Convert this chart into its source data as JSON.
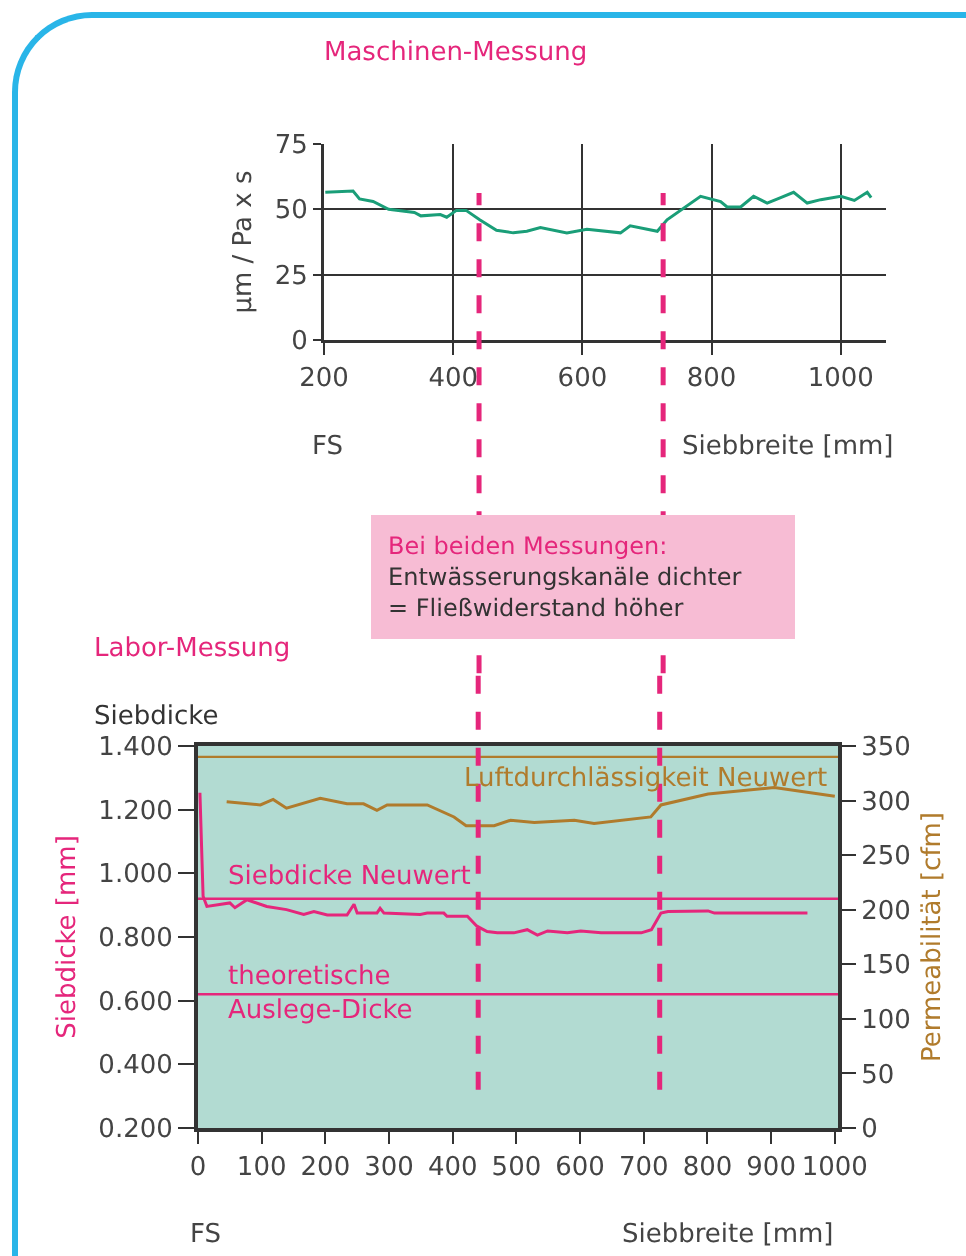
{
  "chart_data": [
    {
      "type": "line",
      "title": "Maschinen-Messung",
      "xlabel": "Siebbreite [mm]",
      "ylabel": "µm / Pa x s",
      "x": [
        202,
        245,
        255,
        276,
        300,
        340,
        350,
        380,
        390,
        405,
        420,
        441,
        467,
        493,
        514,
        535,
        576,
        607,
        659,
        674,
        716,
        731,
        783,
        814,
        824,
        845,
        865,
        886,
        907,
        927,
        948,
        969,
        1000,
        1021,
        1041,
        1047
      ],
      "series": [
        {
          "color": "#1a9e78",
          "values": [
            56.5,
            57,
            54,
            53,
            50,
            48.8,
            47.5,
            48,
            47,
            49.6,
            49.6,
            46,
            42,
            41,
            41.6,
            43,
            41,
            42.4,
            41,
            43.7,
            41.6,
            46,
            55,
            53,
            50.9,
            50.9,
            55,
            52.4,
            54.5,
            56.5,
            52.4,
            53.7,
            55,
            53.4,
            56.5,
            54.5
          ]
        }
      ],
      "xlim": [
        200,
        1070
      ],
      "xticks": [
        200,
        400,
        600,
        800,
        1000
      ],
      "ylim": [
        0,
        75
      ],
      "yticks": [
        0,
        25,
        50,
        75
      ],
      "grid": true,
      "ref_lines": [
        {
          "axis": "x",
          "value": 440,
          "color": "#e5267b",
          "line_style": "dashed"
        },
        {
          "axis": "x",
          "value": 725,
          "color": "#e5267b",
          "line_style": "dashed"
        }
      ],
      "annotations": [
        "FS",
        "Bei beiden Messungen:\nEntwässerungskanäle dichter\n= Fließwiderstand höher"
      ]
    },
    {
      "type": "line",
      "title": "Labor-Messung",
      "subtitle": "Siebdicke",
      "xlabel": "Siebbreite [mm]",
      "ylabel": "Siebdicke [mm]",
      "y2label": "Permeabilität [cfm]",
      "series": [
        {
          "color": "#e5267b",
          "x": [
            3,
            8,
            14,
            50,
            58,
            77,
            108,
            139,
            166,
            182,
            203,
            234,
            245,
            250,
            281,
            286,
            292,
            349,
            360,
            386,
            391,
            423,
            438,
            454,
            470,
            496,
            517,
            533,
            549,
            580,
            601,
            633,
            675,
            696,
            712,
            727,
            738,
            801,
            811,
            843,
            957
          ],
          "values": [
            1.253,
            0.928,
            0.896,
            0.907,
            0.892,
            0.917,
            0.896,
            0.886,
            0.871,
            0.88,
            0.869,
            0.869,
            0.903,
            0.875,
            0.875,
            0.89,
            0.875,
            0.871,
            0.875,
            0.875,
            0.865,
            0.865,
            0.834,
            0.817,
            0.813,
            0.813,
            0.823,
            0.806,
            0.819,
            0.813,
            0.819,
            0.813,
            0.813,
            0.813,
            0.823,
            0.875,
            0.88,
            0.882,
            0.875,
            0.875,
            0.875
          ]
        },
        {
          "color": "#b07b2c",
          "axis": "y2",
          "x": [
            45,
            98,
            118,
            139,
            192,
            234,
            260,
            281,
            297,
            360,
            402,
            421,
            465,
            491,
            528,
            591,
            622,
            711,
            727,
            801,
            905,
            1000
          ],
          "values": [
            299,
            296,
            301,
            293,
            302,
            297,
            297,
            291,
            296,
            296,
            285,
            277,
            277,
            282,
            280,
            282,
            279,
            285,
            296,
            306,
            312,
            304
          ]
        }
      ],
      "xlim": [
        0,
        1005
      ],
      "xticks": [
        0,
        100,
        200,
        300,
        400,
        500,
        600,
        700,
        800,
        900,
        1000
      ],
      "ylim": [
        0.2,
        1.4
      ],
      "yticks": [
        {
          "value": 0.2,
          "label": "0.200"
        },
        {
          "value": 0.4,
          "label": "0.400"
        },
        {
          "value": 0.6,
          "label": "0.600"
        },
        {
          "value": 0.8,
          "label": "0.800"
        },
        {
          "value": 1.0,
          "label": "1.000"
        },
        {
          "value": 1.2,
          "label": "1.200"
        },
        {
          "value": 1.4,
          "label": "1.400"
        }
      ],
      "y2lim": [
        0,
        350
      ],
      "y2ticks": [
        0,
        50,
        100,
        150,
        200,
        250,
        300,
        350
      ],
      "grid": false,
      "ref_lines": [
        {
          "axis": "y",
          "value": 0.92,
          "label": "Siebdicke Neuwert",
          "color": "#e5267b"
        },
        {
          "axis": "y",
          "value": 0.62,
          "label": "theoretische\nAuslege-Dicke",
          "color": "#e5267b"
        },
        {
          "axis": "y2",
          "value": 340,
          "label": "Luftdurchlässigkeit Neuwert",
          "color": "#b07b2c"
        },
        {
          "axis": "x",
          "value": 440,
          "color": "#e5267b",
          "line_style": "dashed"
        },
        {
          "axis": "x",
          "value": 725,
          "color": "#e5267b",
          "line_style": "dashed"
        }
      ],
      "annotations": [
        "FS"
      ]
    }
  ]
}
